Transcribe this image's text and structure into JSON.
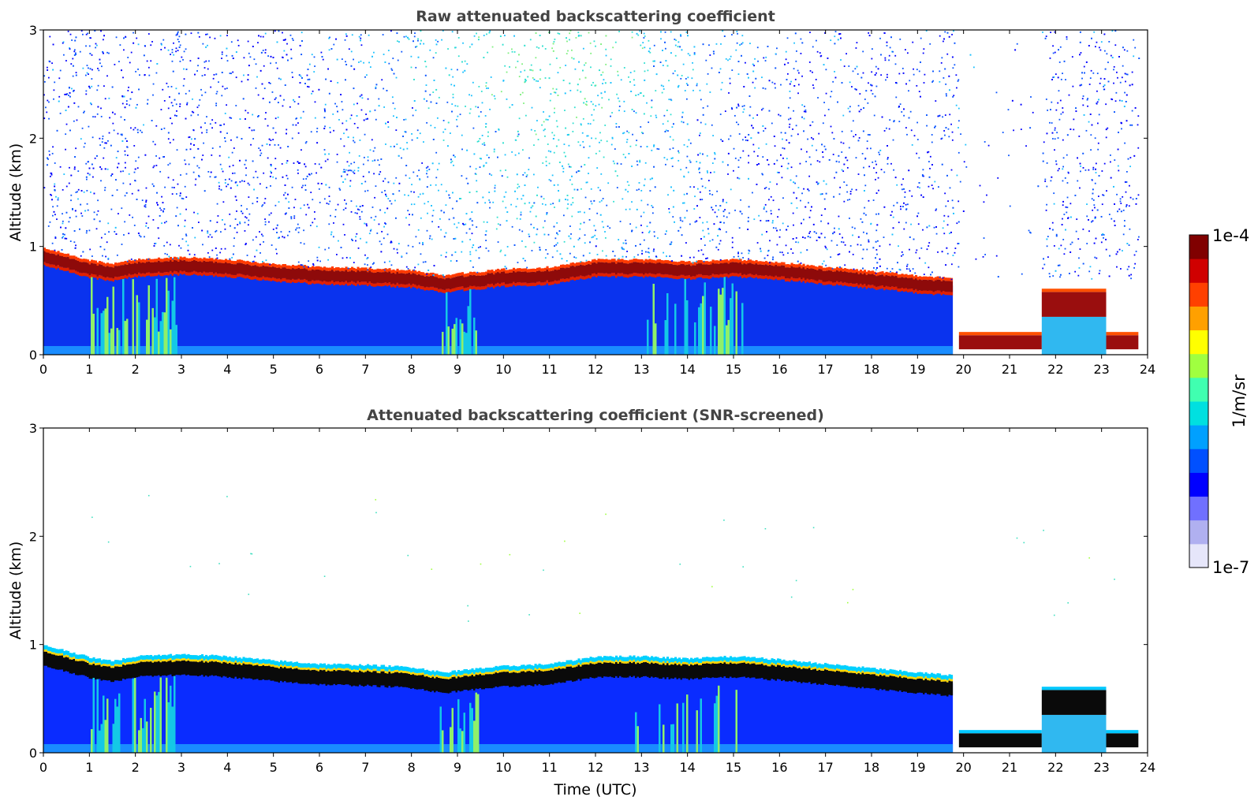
{
  "chart_data": [
    {
      "type": "heatmap",
      "title": "Raw attenuated backscattering coefficient",
      "xlabel": "",
      "ylabel": "Altitude (km)",
      "xlim": [
        0,
        24
      ],
      "ylim": [
        0,
        3
      ],
      "xticks": [
        "0",
        "1",
        "2",
        "3",
        "4",
        "5",
        "6",
        "7",
        "8",
        "9",
        "10",
        "11",
        "12",
        "13",
        "14",
        "15",
        "16",
        "17",
        "18",
        "19",
        "20",
        "21",
        "22",
        "23",
        "24"
      ],
      "yticks": [
        "0",
        "1",
        "2",
        "3"
      ],
      "screened": false,
      "layer_top_km": {
        "x": [
          0,
          0.5,
          1,
          1.5,
          2,
          3,
          4,
          5,
          6,
          7,
          8,
          8.7,
          9,
          10,
          11,
          12,
          13,
          14,
          15,
          16,
          17,
          18,
          19,
          19.6
        ],
        "top": [
          0.97,
          0.92,
          0.86,
          0.83,
          0.87,
          0.89,
          0.87,
          0.83,
          0.8,
          0.79,
          0.77,
          0.72,
          0.74,
          0.78,
          0.8,
          0.87,
          0.87,
          0.85,
          0.87,
          0.84,
          0.8,
          0.76,
          0.72,
          0.7
        ]
      },
      "late_layers": [
        {
          "x0": 19.9,
          "x1": 21.7,
          "base_km": 0.05,
          "top_km": 0.18
        },
        {
          "x0": 21.7,
          "x1": 23.1,
          "base_km": 0.35,
          "top_km": 0.58
        },
        {
          "x0": 23.1,
          "x1": 23.8,
          "base_km": 0.05,
          "top_km": 0.18
        }
      ]
    },
    {
      "type": "heatmap",
      "title": "Attenuated backscattering coefficient (SNR-screened)",
      "xlabel": "Time (UTC)",
      "ylabel": "Altitude (km)",
      "xlim": [
        0,
        24
      ],
      "ylim": [
        0,
        3
      ],
      "xticks": [
        "0",
        "1",
        "2",
        "3",
        "4",
        "5",
        "6",
        "7",
        "8",
        "9",
        "10",
        "11",
        "12",
        "13",
        "14",
        "15",
        "16",
        "17",
        "18",
        "19",
        "20",
        "21",
        "22",
        "23",
        "24"
      ],
      "yticks": [
        "0",
        "1",
        "2",
        "3"
      ],
      "screened": true
    }
  ],
  "colorbar": {
    "label": "1/m/sr",
    "min_label": "1e-7",
    "max_label": "1e-4",
    "colors": [
      "#e6e6fa",
      "#b0b0f0",
      "#7070ff",
      "#0000ff",
      "#0050ff",
      "#00a0ff",
      "#00e0e0",
      "#40ffb0",
      "#a0ff40",
      "#ffff00",
      "#ffa000",
      "#ff4000",
      "#d00000",
      "#800000"
    ]
  }
}
